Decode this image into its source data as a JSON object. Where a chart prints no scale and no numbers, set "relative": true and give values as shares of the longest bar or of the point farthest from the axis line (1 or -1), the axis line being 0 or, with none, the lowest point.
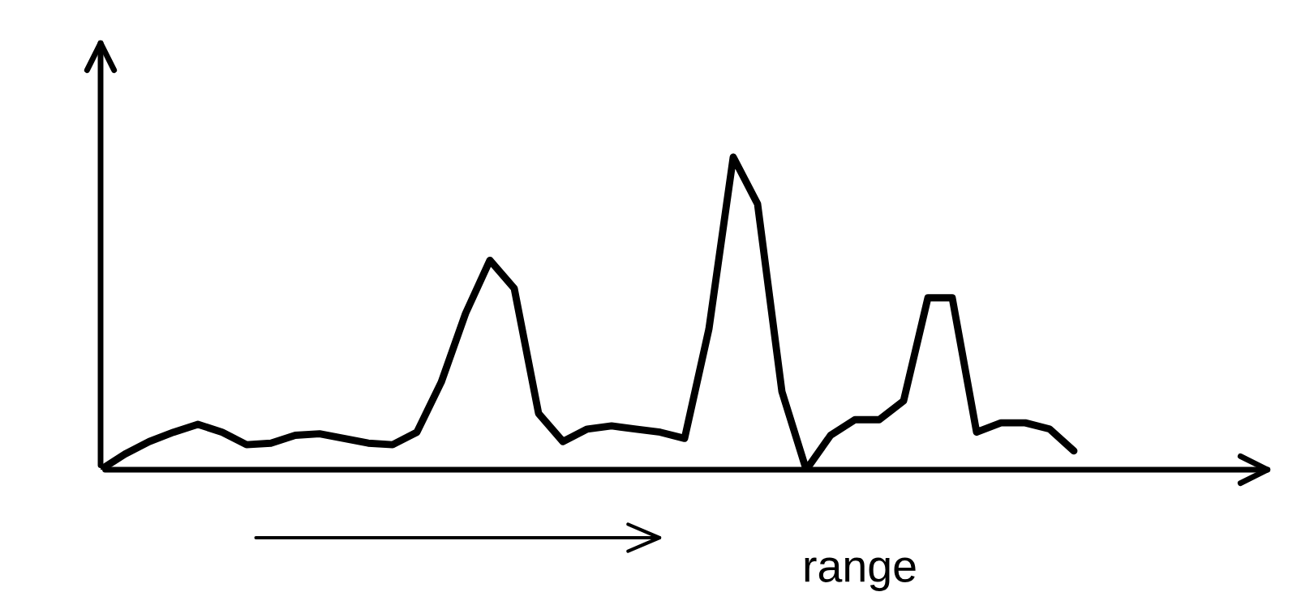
{
  "chart_data": {
    "type": "line",
    "relative": true,
    "categories": [
      null,
      null,
      null,
      null,
      null,
      null,
      null,
      null,
      null,
      null,
      null,
      null,
      null,
      null,
      null,
      null,
      null,
      null,
      null,
      null,
      null,
      null,
      null,
      null,
      null,
      null,
      null,
      null,
      null,
      null,
      null,
      null,
      null,
      null,
      null,
      null,
      null,
      null,
      null,
      null,
      null
    ],
    "series": [
      {
        "color": "#000000",
        "values": [
          0,
          0.05,
          0.09,
          0.12,
          0.145,
          0.12,
          0.08,
          0.085,
          0.11,
          0.115,
          0.1,
          0.085,
          0.08,
          0.12,
          0.28,
          0.5,
          0.67,
          0.58,
          0.18,
          0.09,
          0.13,
          0.14,
          0.13,
          0.12,
          0.1,
          0.45,
          1,
          0.85,
          0.25,
          0,
          0.11,
          0.16,
          0.16,
          0.22,
          0.55,
          0.55,
          0.12,
          0.15,
          0.15,
          0.13,
          0.06
        ]
      }
    ],
    "annotations": [
      "range"
    ],
    "marker": "none",
    "line_style": "solid"
  }
}
